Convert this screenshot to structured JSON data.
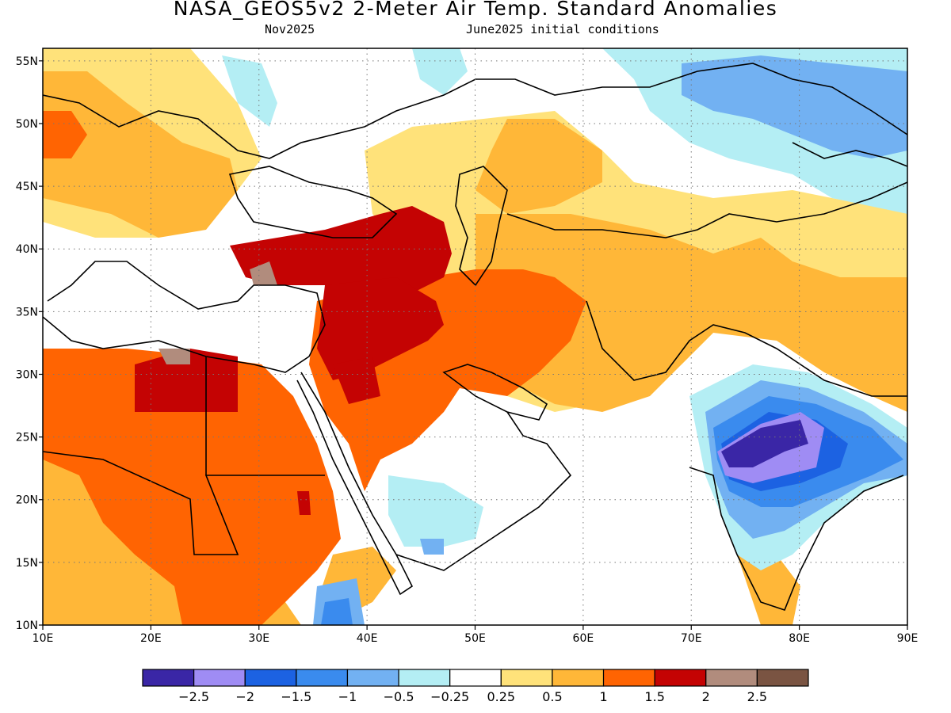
{
  "title": "NASA_GEOS5v2 2-Meter Air Temp. Standard Anomalies",
  "valid_month": "Nov2025",
  "initial_conditions": "June2025 initial conditions",
  "map": {
    "lon_range": [
      10,
      90
    ],
    "lat_range": [
      10,
      56
    ],
    "lon_labels": [
      "10E",
      "20E",
      "30E",
      "40E",
      "50E",
      "60E",
      "70E",
      "80E",
      "90E"
    ],
    "lat_labels": [
      "10N",
      "15N",
      "20N",
      "25N",
      "30N",
      "35N",
      "40N",
      "45N",
      "50N",
      "55N"
    ]
  },
  "legend": {
    "colors": [
      "#3a26a6",
      "#9f8cf4",
      "#1c62e2",
      "#3a8bee",
      "#72b1f2",
      "#b4eef4",
      "#ffffff",
      "#ffe27a",
      "#ffb738",
      "#ff6402",
      "#c40303",
      "#b18c7d",
      "#7a5442"
    ],
    "labels": [
      "−2.5",
      "−2",
      "−1.5",
      "−1",
      "−0.5",
      "−0.25",
      "0.25",
      "0.5",
      "1",
      "1.5",
      "2",
      "2.5"
    ]
  }
}
